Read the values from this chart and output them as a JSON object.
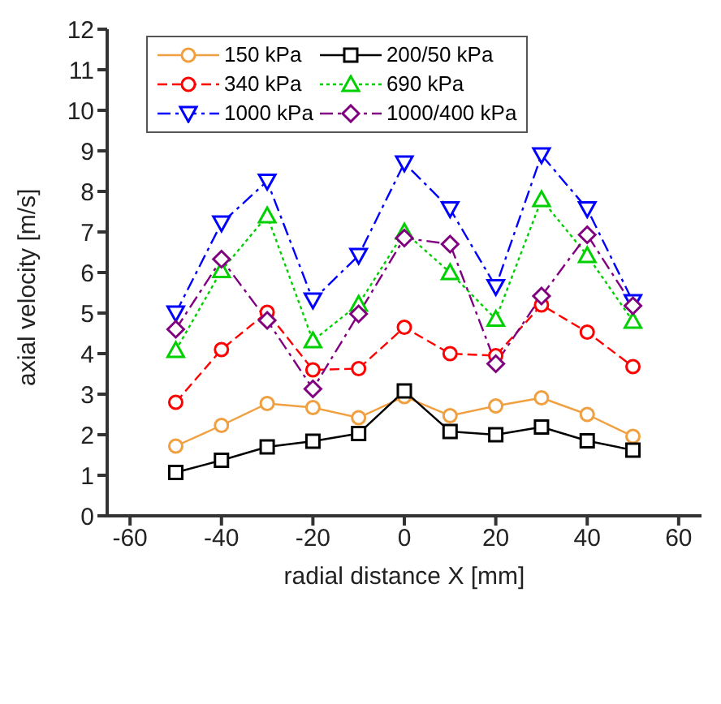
{
  "chart_data": {
    "type": "line",
    "xlabel": "radial distance X [mm]",
    "ylabel": "axial velocity [m/s]",
    "x": [
      -50,
      -40,
      -30,
      -20,
      -10,
      0,
      10,
      20,
      30,
      40,
      50
    ],
    "xlim": [
      -65,
      65
    ],
    "xticks": [
      -60,
      -40,
      -20,
      0,
      20,
      40,
      60
    ],
    "ylim": [
      0,
      12
    ],
    "yticks": [
      0,
      1,
      2,
      3,
      4,
      5,
      6,
      7,
      8,
      9,
      10,
      11,
      12
    ],
    "grid": false,
    "legend": "top",
    "series": [
      {
        "name": "150 kPa",
        "color": "#f0a040",
        "marker": "circle",
        "line_style": "solid",
        "values": [
          1.72,
          2.23,
          2.77,
          2.67,
          2.42,
          2.94,
          2.47,
          2.71,
          2.91,
          2.5,
          1.96
        ]
      },
      {
        "name": "200/50 kPa",
        "color": "#000000",
        "marker": "square",
        "line_style": "solid",
        "values": [
          1.07,
          1.37,
          1.7,
          1.84,
          2.03,
          3.08,
          2.08,
          2.0,
          2.19,
          1.85,
          1.62
        ]
      },
      {
        "name": "340 kPa",
        "color": "#ff0000",
        "marker": "circle",
        "line_style": "dashed",
        "values": [
          2.8,
          4.1,
          5.02,
          3.6,
          3.63,
          4.65,
          4.0,
          3.95,
          5.2,
          4.53,
          3.68
        ]
      },
      {
        "name": "690 kPa",
        "color": "#00d000",
        "marker": "triangle",
        "line_style": "dotted",
        "values": [
          4.08,
          6.05,
          7.4,
          4.32,
          5.22,
          7.0,
          6.0,
          4.85,
          7.8,
          6.42,
          4.8
        ]
      },
      {
        "name": "1000 kPa",
        "color": "#0000ff",
        "marker": "triangle-down",
        "line_style": "dashdot",
        "values": [
          5.0,
          7.22,
          8.25,
          5.32,
          6.42,
          8.7,
          7.57,
          5.65,
          8.9,
          7.57,
          5.28
        ]
      },
      {
        "name": "1000/400 kPa",
        "color": "#800080",
        "marker": "diamond",
        "line_style": "dashdot",
        "values": [
          4.6,
          6.33,
          4.82,
          3.13,
          4.98,
          6.85,
          6.7,
          3.75,
          5.42,
          6.93,
          5.18
        ]
      }
    ]
  }
}
